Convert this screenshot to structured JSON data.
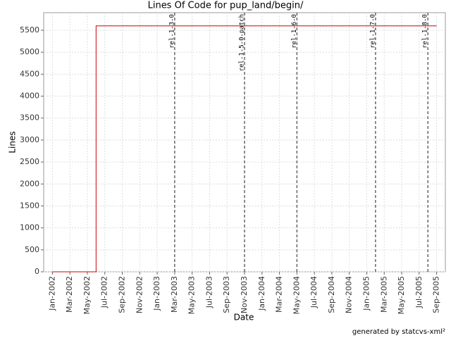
{
  "chart_data": {
    "type": "line",
    "title": "Lines Of Code for pup_land/begin/",
    "x_label": "Date",
    "y_label": "Lines",
    "footer": "generated by statcvs-xml²",
    "xlim": [
      "2001-12",
      "2005-10"
    ],
    "ylim": [
      0,
      5900
    ],
    "yticks": [
      0,
      500,
      1000,
      1500,
      2000,
      2500,
      3000,
      3500,
      4000,
      4500,
      5000,
      5500
    ],
    "xticks": [
      {
        "value": "2002-01",
        "label": "Jan-2002"
      },
      {
        "value": "2002-03",
        "label": "Mar-2002"
      },
      {
        "value": "2002-05",
        "label": "May-2002"
      },
      {
        "value": "2002-07",
        "label": "Jul-2002"
      },
      {
        "value": "2002-09",
        "label": "Sep-2002"
      },
      {
        "value": "2002-11",
        "label": "Nov-2002"
      },
      {
        "value": "2003-01",
        "label": "Jan-2003"
      },
      {
        "value": "2003-03",
        "label": "Mar-2003"
      },
      {
        "value": "2003-05",
        "label": "May-2003"
      },
      {
        "value": "2003-07",
        "label": "Jul-2003"
      },
      {
        "value": "2003-09",
        "label": "Sep-2003"
      },
      {
        "value": "2003-11",
        "label": "Nov-2003"
      },
      {
        "value": "2004-01",
        "label": "Jan-2004"
      },
      {
        "value": "2004-03",
        "label": "Mar-2004"
      },
      {
        "value": "2004-05",
        "label": "May-2004"
      },
      {
        "value": "2004-07",
        "label": "Jul-2004"
      },
      {
        "value": "2004-09",
        "label": "Sep-2004"
      },
      {
        "value": "2004-11",
        "label": "Nov-2004"
      },
      {
        "value": "2005-01",
        "label": "Jan-2005"
      },
      {
        "value": "2005-03",
        "label": "Mar-2005"
      },
      {
        "value": "2005-05",
        "label": "May-2005"
      },
      {
        "value": "2005-07",
        "label": "Jul-2005"
      },
      {
        "value": "2005-09",
        "label": "Sep-2005"
      }
    ],
    "grid": true,
    "series": [
      {
        "color": "#cc0000",
        "x": [
          "2002-01",
          "2002-06",
          "2002-06",
          "2005-09"
        ],
        "values": [
          0,
          0,
          5600,
          5600
        ]
      }
    ],
    "markers": [
      {
        "label": "rel-1-3-0",
        "x": "2003-03"
      },
      {
        "label": "rel-1-5-0-patch",
        "x": "2003-11"
      },
      {
        "label": "rel-1-6-0",
        "x": "2004-05"
      },
      {
        "label": "rel-1-7-0",
        "x": "2005-02"
      },
      {
        "label": "rel-1-8-0",
        "x": "2005-08"
      }
    ]
  }
}
